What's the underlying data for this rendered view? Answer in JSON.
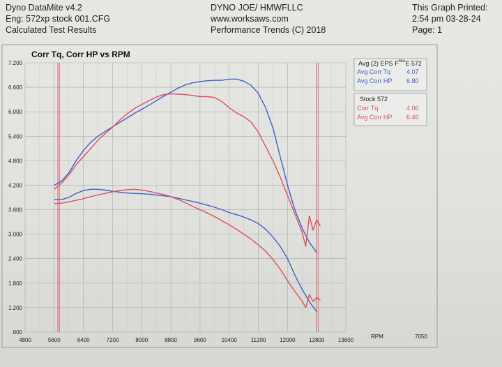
{
  "header": {
    "left": [
      "Dyno DataMite v4.2",
      "Eng: 572xp stock 001.CFG",
      "Calculated Test Results"
    ],
    "center": [
      "DYNO JOE/ HMWFLLC",
      "www.worksaws.com",
      "Performance Trends (C) 2018"
    ],
    "right": [
      "This Graph Printed:",
      "2:54 pm 03-28-24",
      "Page: 1"
    ]
  },
  "colors": {
    "blue": "#3f5fc4",
    "red": "#d9505d",
    "grid": "#aaaaaa",
    "marker": "#d9505d"
  },
  "chart_data": {
    "type": "line",
    "title": "Corr Tq, Corr HP vs RPM",
    "xlabel": "RPM",
    "extra_label": "7050",
    "xlim": [
      4800,
      13600
    ],
    "ylim": [
      0.6,
      7.2
    ],
    "x_ticks": [
      "4800",
      "5600",
      "6400",
      "7200",
      "8000",
      "8800",
      "9600",
      "10400",
      "11200",
      "12000",
      "12800",
      "13600"
    ],
    "y_ticks": [
      "7.200",
      "6.600",
      "6.000",
      "5.400",
      "4.800",
      "4.200",
      "3.600",
      "3.000",
      "2.400",
      "1.800",
      "1.200",
      ".600"
    ],
    "grid": true,
    "rpm_markers": [
      5700,
      12800
    ],
    "legend": [
      {
        "header": "Avg (2) EPS",
        "header_suffix": "F",
        "header_sup": "Max",
        "header_tail": "E 572",
        "entries": [
          {
            "label": "Avg Corr Tq",
            "value": "4.07",
            "color": "#3f5fc4"
          },
          {
            "label": "Avg Corr HP",
            "value": "6.80",
            "color": "#3f5fc4"
          }
        ]
      },
      {
        "header": "Stock 572",
        "entries": [
          {
            "label": "Corr Tq",
            "value": "4.06",
            "color": "#d9505d"
          },
          {
            "label": "Avg Corr HP",
            "value": "6.46",
            "color": "#d9505d"
          }
        ]
      }
    ],
    "series": [
      {
        "name": "Avg Corr HP",
        "color": "#3f5fc4",
        "x": [
          5600,
          5800,
          6000,
          6200,
          6400,
          6600,
          6800,
          7000,
          7200,
          7400,
          7600,
          7800,
          8000,
          8200,
          8400,
          8600,
          8800,
          9000,
          9200,
          9400,
          9600,
          9800,
          10000,
          10200,
          10400,
          10600,
          10800,
          11000,
          11200,
          11400,
          11600,
          11800,
          12000,
          12200,
          12400,
          12600,
          12800
        ],
        "y": [
          4.2,
          4.3,
          4.5,
          4.8,
          5.05,
          5.25,
          5.4,
          5.52,
          5.63,
          5.74,
          5.85,
          5.96,
          6.06,
          6.16,
          6.27,
          6.38,
          6.48,
          6.58,
          6.66,
          6.71,
          6.74,
          6.76,
          6.77,
          6.77,
          6.8,
          6.8,
          6.75,
          6.65,
          6.45,
          6.1,
          5.6,
          4.9,
          4.2,
          3.6,
          3.15,
          2.8,
          2.55
        ]
      },
      {
        "name": "Stock 572 Corr HP",
        "color": "#d9505d",
        "x": [
          5600,
          5800,
          6000,
          6200,
          6400,
          6600,
          6800,
          7000,
          7200,
          7400,
          7600,
          7800,
          8000,
          8200,
          8400,
          8600,
          8800,
          9000,
          9200,
          9400,
          9600,
          9800,
          10000,
          10200,
          10400,
          10600,
          10800,
          11000,
          11200,
          11400,
          11600,
          11800,
          12000,
          12200,
          12400,
          12500,
          12600,
          12700,
          12800,
          12900
        ],
        "y": [
          4.1,
          4.25,
          4.45,
          4.7,
          4.9,
          5.1,
          5.3,
          5.47,
          5.62,
          5.8,
          5.95,
          6.08,
          6.18,
          6.27,
          6.36,
          6.42,
          6.44,
          6.43,
          6.42,
          6.4,
          6.37,
          6.37,
          6.35,
          6.25,
          6.1,
          5.97,
          5.88,
          5.75,
          5.5,
          5.15,
          4.8,
          4.4,
          3.95,
          3.5,
          3.05,
          2.7,
          3.45,
          3.1,
          3.35,
          3.2
        ]
      },
      {
        "name": "Avg Corr Tq",
        "color": "#3f5fc4",
        "x": [
          5600,
          5800,
          6000,
          6200,
          6400,
          6600,
          6800,
          7000,
          7200,
          7400,
          7600,
          7800,
          8000,
          8200,
          8400,
          8600,
          8800,
          9000,
          9200,
          9400,
          9600,
          9800,
          10000,
          10200,
          10400,
          10600,
          10800,
          11000,
          11200,
          11400,
          11600,
          11800,
          12000,
          12200,
          12400,
          12600,
          12800
        ],
        "y": [
          3.85,
          3.85,
          3.9,
          4.0,
          4.07,
          4.1,
          4.1,
          4.08,
          4.05,
          4.03,
          4.01,
          4.0,
          3.99,
          3.98,
          3.96,
          3.94,
          3.92,
          3.88,
          3.84,
          3.8,
          3.76,
          3.71,
          3.66,
          3.6,
          3.53,
          3.48,
          3.42,
          3.35,
          3.26,
          3.12,
          2.93,
          2.7,
          2.4,
          2.0,
          1.65,
          1.35,
          1.1
        ]
      },
      {
        "name": "Stock 572 Corr Tq",
        "color": "#d9505d",
        "x": [
          5600,
          5800,
          6000,
          6200,
          6400,
          6600,
          6800,
          7000,
          7200,
          7400,
          7600,
          7800,
          8000,
          8200,
          8400,
          8600,
          8800,
          9000,
          9200,
          9400,
          9600,
          9800,
          10000,
          10200,
          10400,
          10600,
          10800,
          11000,
          11200,
          11400,
          11600,
          11800,
          12000,
          12200,
          12400,
          12500,
          12600,
          12700,
          12800,
          12900
        ],
        "y": [
          3.75,
          3.76,
          3.79,
          3.83,
          3.87,
          3.92,
          3.96,
          4.0,
          4.04,
          4.07,
          4.09,
          4.1,
          4.08,
          4.05,
          4.01,
          3.97,
          3.92,
          3.85,
          3.77,
          3.68,
          3.6,
          3.52,
          3.43,
          3.33,
          3.23,
          3.12,
          3.0,
          2.88,
          2.74,
          2.58,
          2.38,
          2.14,
          1.86,
          1.6,
          1.36,
          1.2,
          1.52,
          1.35,
          1.45,
          1.38
        ]
      }
    ]
  }
}
